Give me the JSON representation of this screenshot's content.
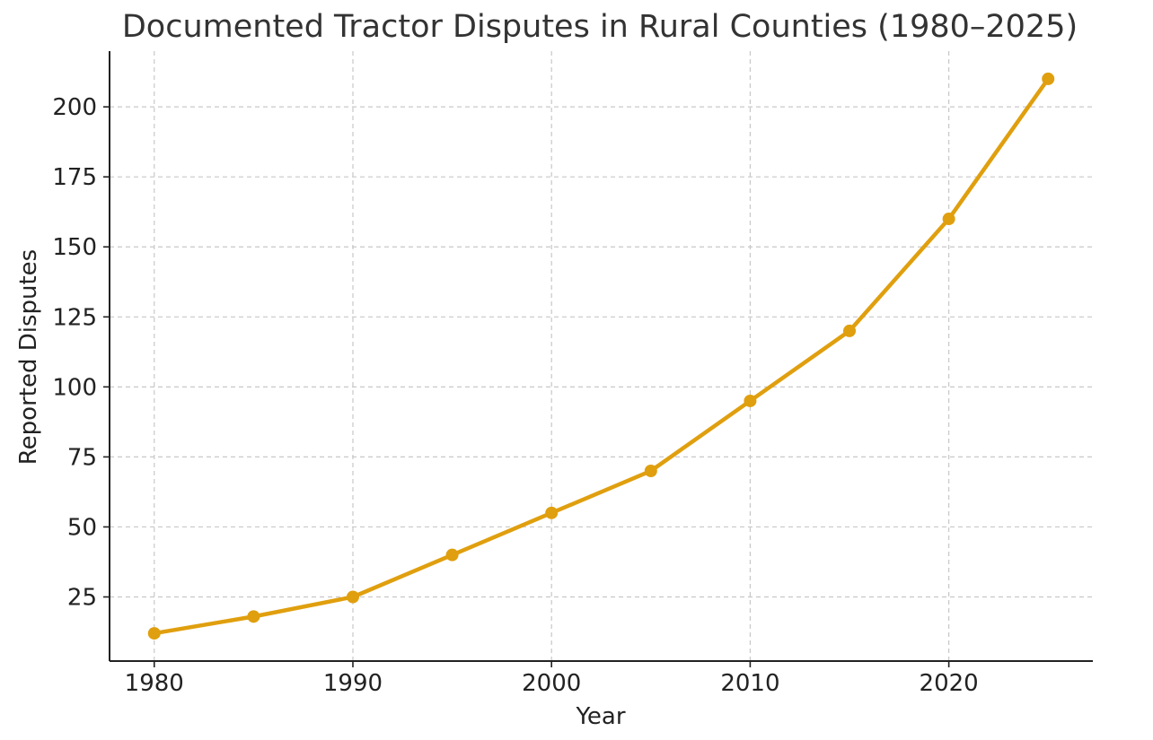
{
  "chart_data": {
    "type": "line",
    "title": "Documented Tractor Disputes in Rural Counties (1980–2025)",
    "xlabel": "Year",
    "ylabel": "Reported Disputes",
    "x": [
      1980,
      1985,
      1990,
      1995,
      2000,
      2005,
      2010,
      2015,
      2020,
      2025
    ],
    "series": [
      {
        "values": [
          12,
          18,
          25,
          40,
          55,
          70,
          95,
          120,
          160,
          210
        ],
        "color": "#E09F0E"
      }
    ],
    "xlim": [
      1977.75,
      2027.25
    ],
    "ylim": [
      2.1,
      219.9
    ],
    "xticks": [
      1980,
      1990,
      2000,
      2010,
      2020
    ],
    "yticks": [
      25,
      50,
      75,
      100,
      125,
      150,
      175,
      200
    ],
    "grid": true,
    "legend": "none"
  }
}
